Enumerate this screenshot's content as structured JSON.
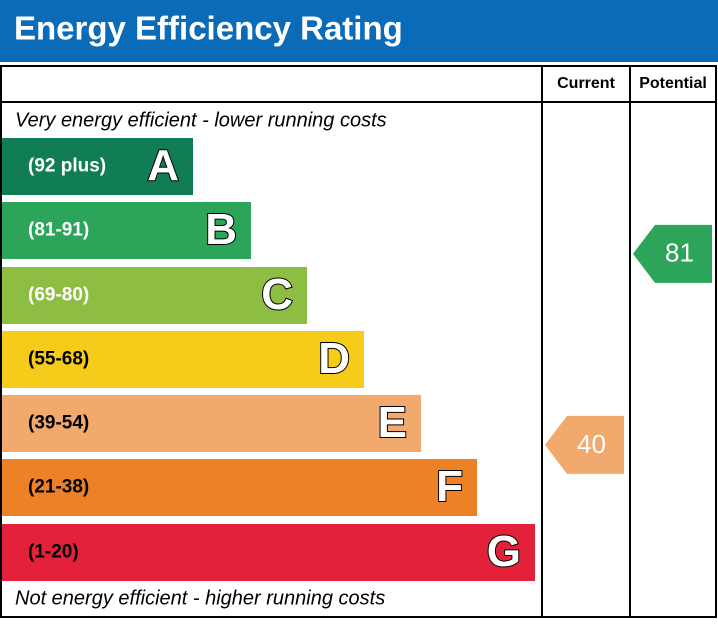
{
  "header": {
    "title": "Energy Efficiency Rating"
  },
  "columns": {
    "current": "Current",
    "potential": "Potential"
  },
  "top_note": "Very energy efficient - lower running costs",
  "bottom_note": "Not energy efficient - higher running costs",
  "bands": [
    {
      "range": "(92 plus)",
      "letter": "A",
      "color": "#117d55"
    },
    {
      "range": "(81-91)",
      "letter": "B",
      "color": "#2ca55a"
    },
    {
      "range": "(69-80)",
      "letter": "C",
      "color": "#8dbd43"
    },
    {
      "range": "(55-68)",
      "letter": "D",
      "color": "#f5cc19"
    },
    {
      "range": "(39-54)",
      "letter": "E",
      "color": "#f1a96d"
    },
    {
      "range": "(21-38)",
      "letter": "F",
      "color": "#ec8128"
    },
    {
      "range": "(1-20)",
      "letter": "G",
      "color": "#e3213b"
    }
  ],
  "ratings": {
    "current": {
      "value": 40,
      "color": "#f1a96d"
    },
    "potential": {
      "value": 81,
      "color": "#2ca55a"
    }
  }
}
